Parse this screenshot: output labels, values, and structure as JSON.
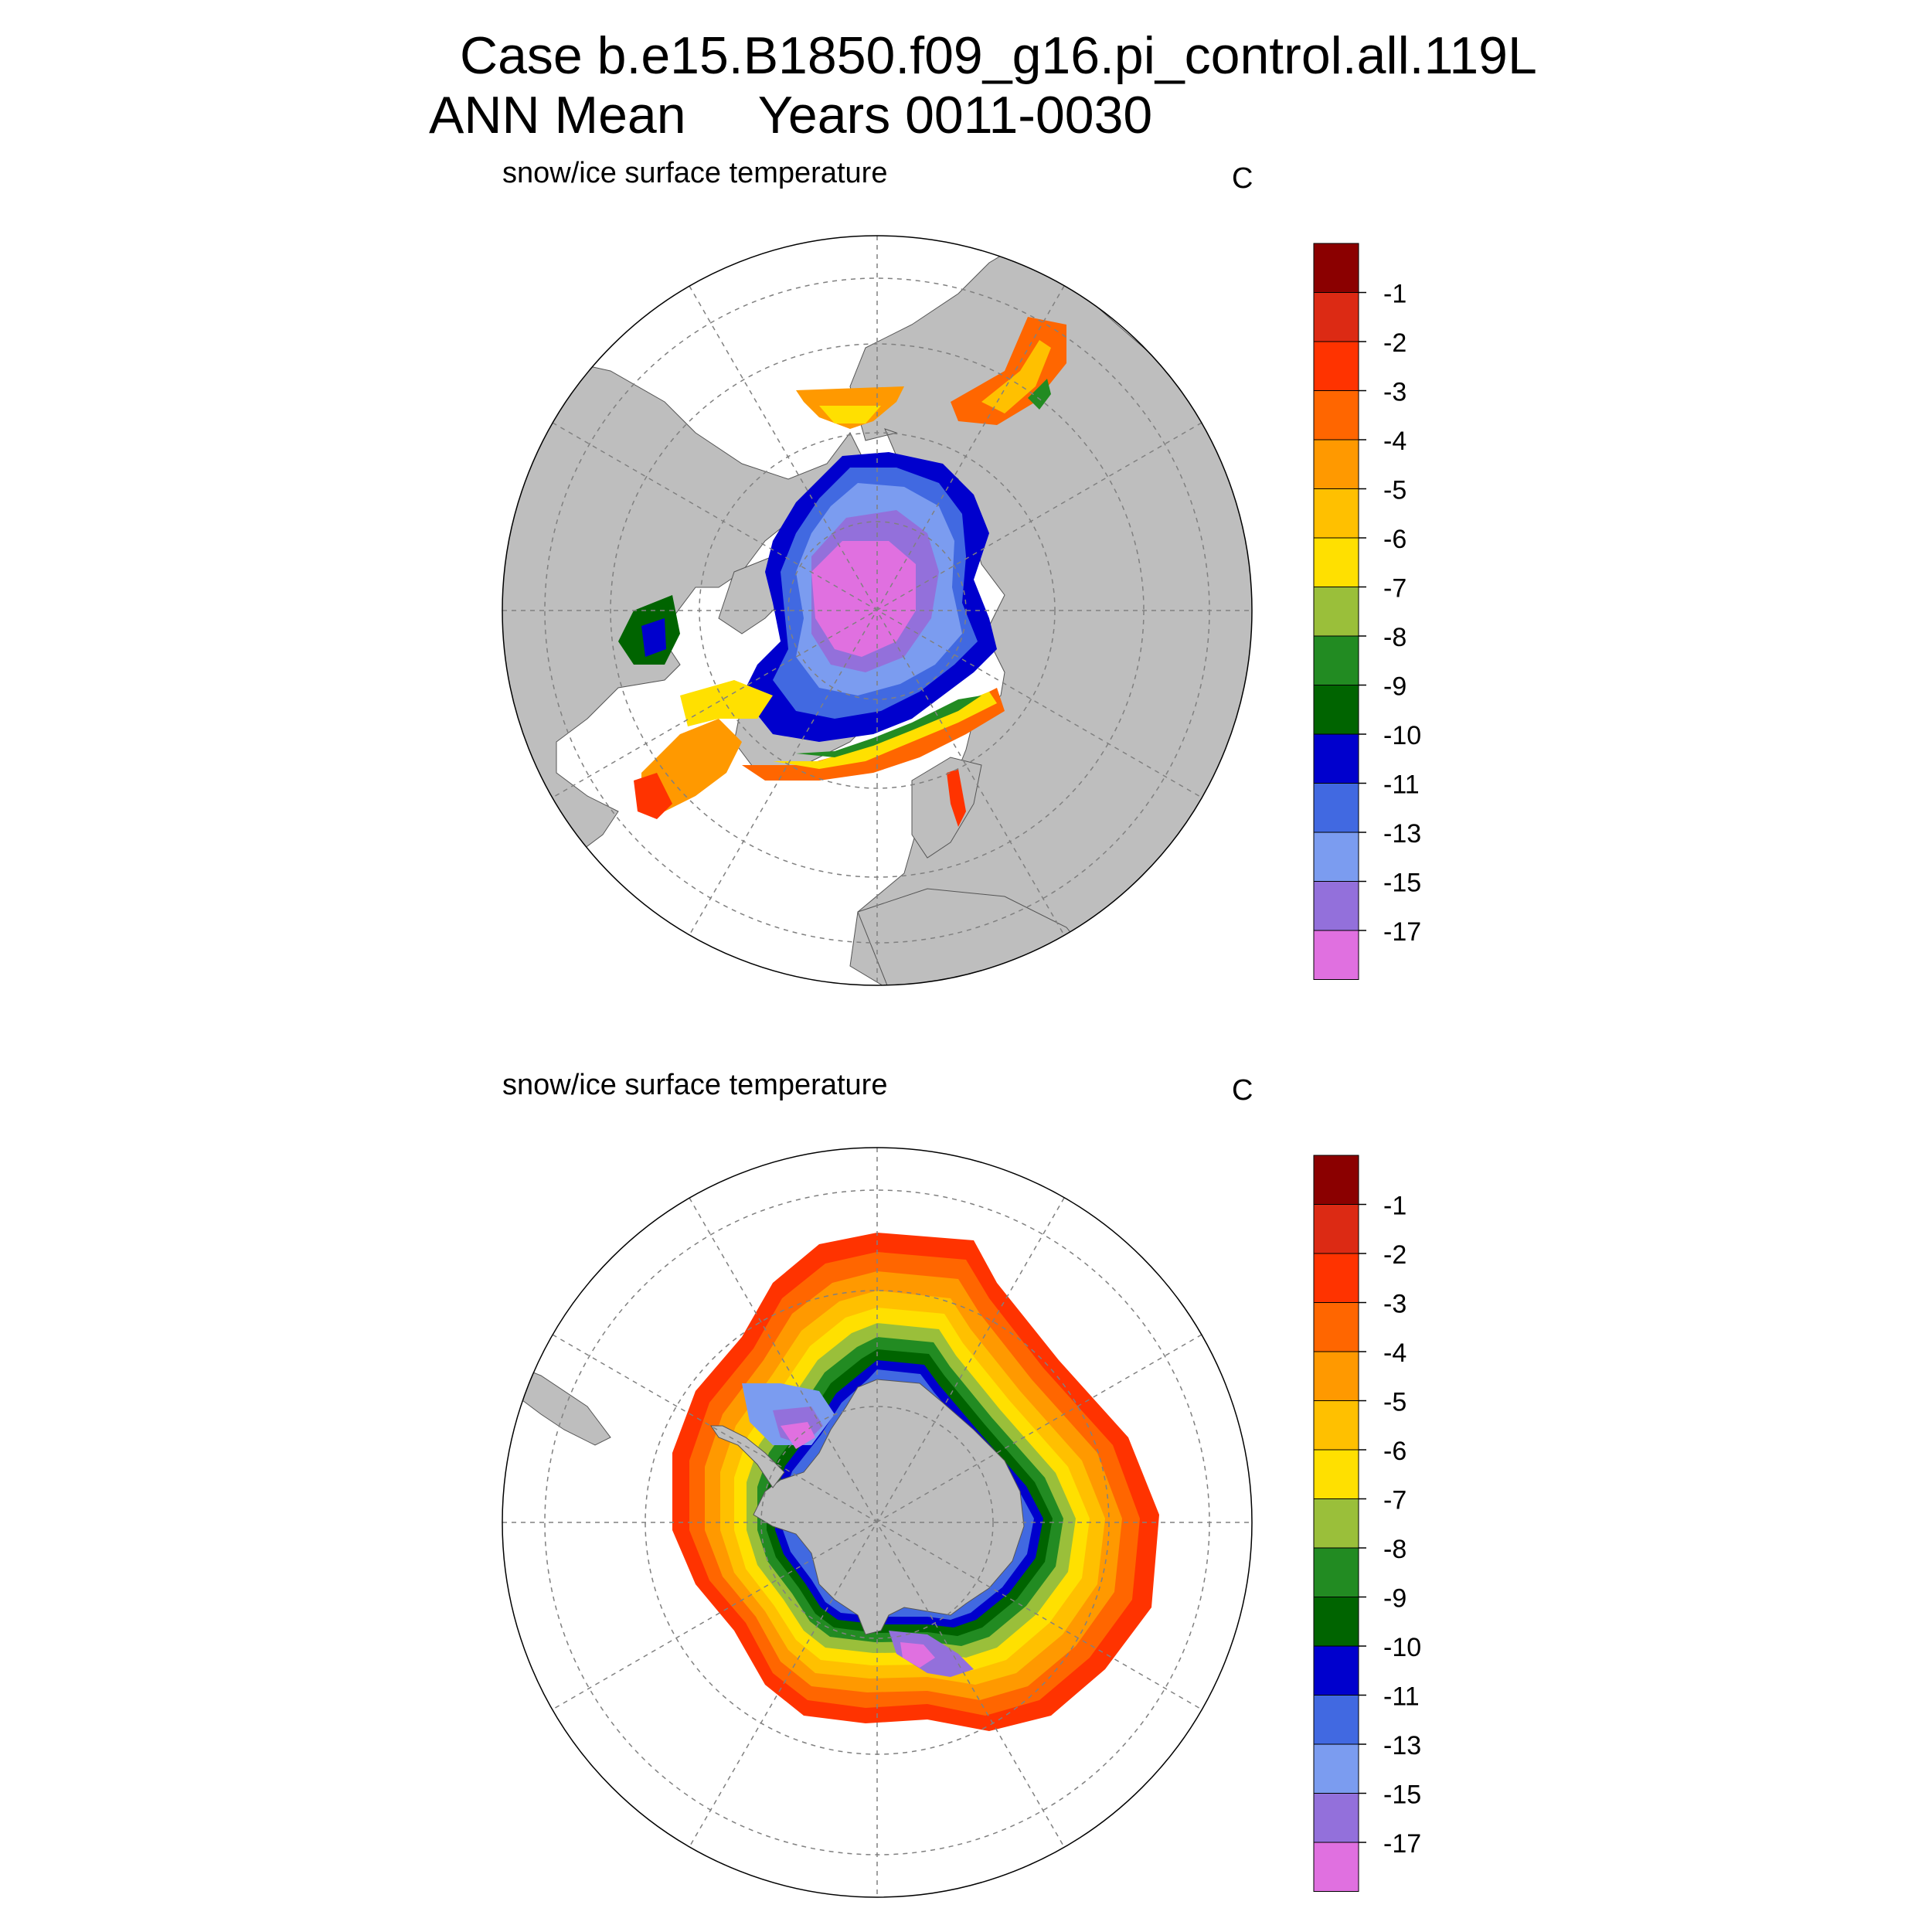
{
  "figure": {
    "title_line1": "Case b.e15.B1850.f09_g16.pi_control.all.119L",
    "title_line2": "ANN Mean     Years 0011-0030"
  },
  "colorbar": {
    "labels": [
      "-1",
      "-2",
      "-3",
      "-4",
      "-5",
      "-6",
      "-7",
      "-8",
      "-9",
      "-10",
      "-11",
      "-13",
      "-15",
      "-17"
    ],
    "colors": [
      "#8b0000",
      "#dc2a14",
      "#ff3300",
      "#ff6600",
      "#ff9900",
      "#ffc000",
      "#ffe000",
      "#9abf3a",
      "#228b22",
      "#006400",
      "#0000cd",
      "#4169e1",
      "#7b9cf0",
      "#9370db",
      "#e070e0"
    ]
  },
  "land_color": "#bebebe",
  "panels": [
    {
      "id": "nh",
      "hemisphere": "Northern Hemisphere",
      "subtitle": "snow/ice surface temperature",
      "units": "C"
    },
    {
      "id": "sh",
      "hemisphere": "Southern Hemisphere",
      "subtitle": "snow/ice surface temperature",
      "units": "C"
    }
  ]
}
